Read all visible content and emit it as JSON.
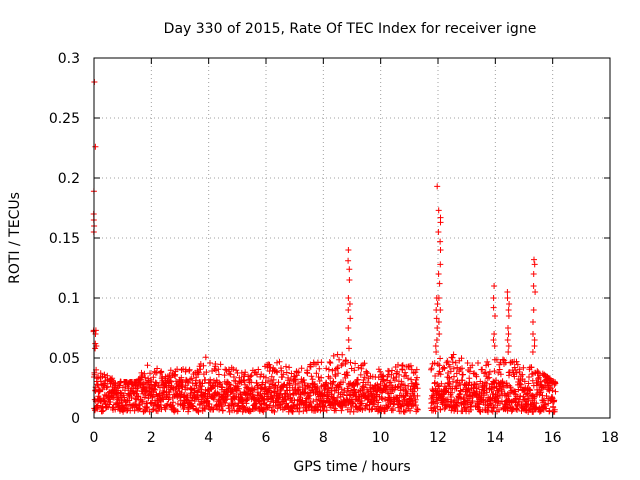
{
  "chart_data": {
    "type": "scatter",
    "title": "Day 330 of 2015, Rate Of TEC Index for receiver igne",
    "xlabel": "GPS time / hours",
    "ylabel": "ROTI / TECUs",
    "xlim": [
      0,
      18
    ],
    "ylim": [
      0,
      0.3
    ],
    "x_ticks": [
      0,
      2,
      4,
      6,
      8,
      10,
      12,
      14,
      16,
      18
    ],
    "x_tick_labels": [
      "0",
      "2",
      "4",
      "6",
      "8",
      "10",
      "12",
      "14",
      "16",
      "18"
    ],
    "y_ticks": [
      0,
      0.05,
      0.1,
      0.15,
      0.2,
      0.25,
      0.3
    ],
    "y_tick_labels": [
      "0",
      "0.05",
      "0.1",
      "0.15",
      "0.2",
      "0.25",
      "0.3"
    ],
    "grid": true,
    "marker": "+",
    "color": "#ff0000",
    "series": [
      {
        "name": "ROTI",
        "baseline": {
          "x_range": [
            0,
            16.1
          ],
          "gap": [
            11.3,
            11.75
          ],
          "typical_range": [
            0.005,
            0.03
          ],
          "upper_envelope": [
            [
              0.0,
              0.045
            ],
            [
              0.5,
              0.035
            ],
            [
              1.0,
              0.03
            ],
            [
              1.5,
              0.03
            ],
            [
              1.8,
              0.045
            ],
            [
              2.5,
              0.04
            ],
            [
              3.0,
              0.042
            ],
            [
              3.5,
              0.04
            ],
            [
              4.0,
              0.055
            ],
            [
              4.5,
              0.045
            ],
            [
              5.0,
              0.04
            ],
            [
              5.5,
              0.04
            ],
            [
              6.0,
              0.045
            ],
            [
              6.5,
              0.048
            ],
            [
              7.0,
              0.04
            ],
            [
              7.5,
              0.045
            ],
            [
              8.0,
              0.05
            ],
            [
              8.5,
              0.055
            ],
            [
              9.0,
              0.05
            ],
            [
              9.5,
              0.045
            ],
            [
              10.0,
              0.04
            ],
            [
              10.5,
              0.045
            ],
            [
              11.0,
              0.045
            ],
            [
              11.3,
              0.04
            ],
            [
              11.75,
              0.045
            ],
            [
              12.0,
              0.05
            ],
            [
              12.5,
              0.055
            ],
            [
              13.0,
              0.05
            ],
            [
              13.5,
              0.045
            ],
            [
              14.0,
              0.05
            ],
            [
              14.5,
              0.05
            ],
            [
              15.0,
              0.045
            ],
            [
              15.5,
              0.04
            ],
            [
              16.1,
              0.03
            ]
          ]
        },
        "spikes": [
          {
            "x": 0.02,
            "values": [
              0.28,
              0.226,
              0.189,
              0.17,
              0.165,
              0.16,
              0.155,
              0.073,
              0.072,
              0.062,
              0.058
            ]
          },
          {
            "x": 0.08,
            "values": [
              0.073,
              0.07,
              0.06
            ]
          },
          {
            "x": 8.9,
            "values": [
              0.14,
              0.131,
              0.124,
              0.115,
              0.1,
              0.095,
              0.09,
              0.083,
              0.075,
              0.065,
              0.058
            ]
          },
          {
            "x": 11.95,
            "values": [
              0.193,
              0.1,
              0.095,
              0.09,
              0.083,
              0.075,
              0.065,
              0.06,
              0.055
            ]
          },
          {
            "x": 12.05,
            "values": [
              0.173,
              0.167,
              0.163,
              0.155,
              0.147,
              0.14,
              0.128,
              0.12,
              0.112,
              0.1,
              0.09,
              0.08,
              0.07
            ]
          },
          {
            "x": 13.95,
            "values": [
              0.11,
              0.1,
              0.092,
              0.085,
              0.07,
              0.065,
              0.06
            ]
          },
          {
            "x": 14.45,
            "values": [
              0.105,
              0.1,
              0.095,
              0.09,
              0.085,
              0.075,
              0.07,
              0.065,
              0.06,
              0.055
            ]
          },
          {
            "x": 15.35,
            "values": [
              0.132,
              0.128,
              0.12,
              0.11,
              0.105,
              0.09,
              0.08,
              0.07,
              0.065,
              0.06,
              0.055
            ]
          }
        ]
      }
    ]
  }
}
